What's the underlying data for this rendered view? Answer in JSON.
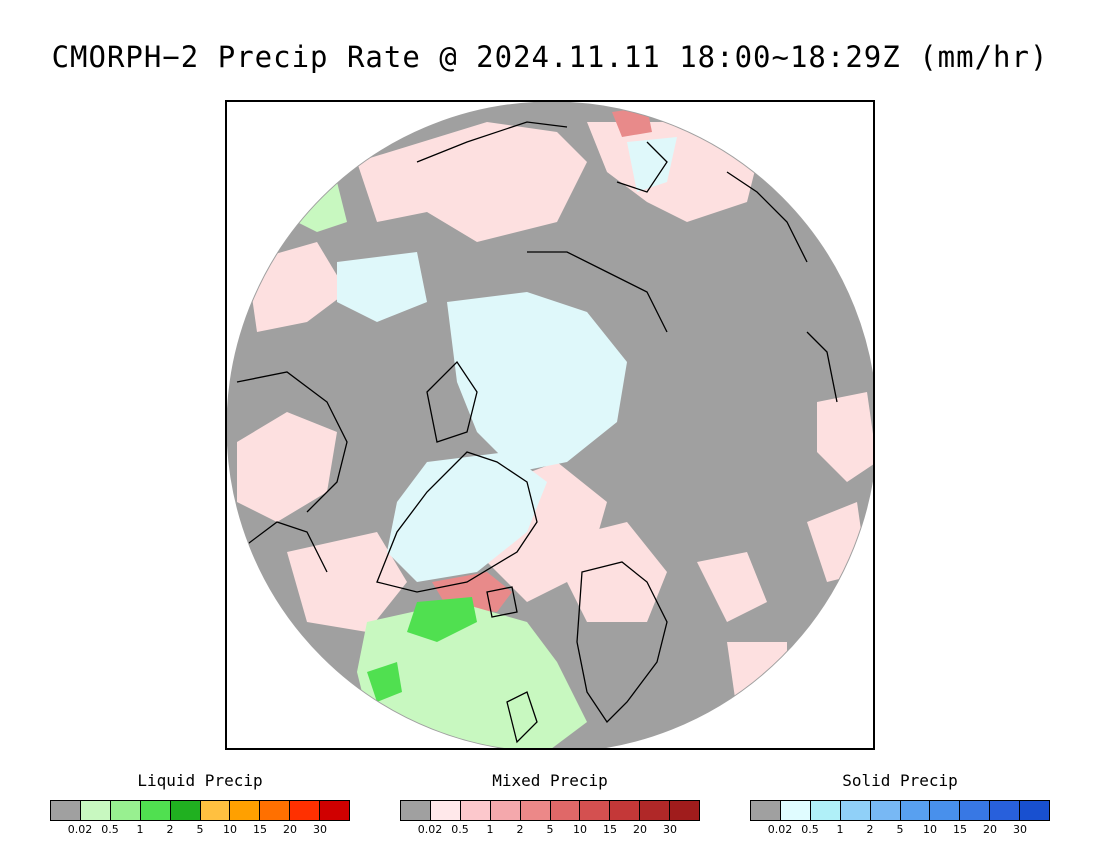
{
  "title": "CMORPH−2 Precip Rate @ 2024.11.11 18:00~18:29Z (mm/hr)",
  "colors": {
    "no_precip": "#a0a0a0",
    "ocean_mixed_light": "#fde0e0",
    "snow_light": "#dff8fa",
    "coastline": "#000000"
  },
  "legends": [
    {
      "id": "liquid",
      "title": "Liquid Precip",
      "colors": [
        "#a0a0a0",
        "#c8f8c0",
        "#98f090",
        "#50e050",
        "#20b020",
        "#ffc040",
        "#ffa000",
        "#ff7000",
        "#ff3000",
        "#d00000"
      ],
      "ticks": [
        "0.02",
        "0.5",
        "1",
        "2",
        "5",
        "10",
        "15",
        "20",
        "30"
      ]
    },
    {
      "id": "mixed",
      "title": "Mixed Precip",
      "colors": [
        "#a0a0a0",
        "#ffe8ea",
        "#fcc8cc",
        "#f4a8ac",
        "#ec8888",
        "#e06868",
        "#d45050",
        "#c43838",
        "#b02828",
        "#a01c1c"
      ],
      "ticks": [
        "0.02",
        "0.5",
        "1",
        "2",
        "5",
        "10",
        "15",
        "20",
        "30"
      ]
    },
    {
      "id": "solid",
      "title": "Solid Precip",
      "colors": [
        "#a0a0a0",
        "#e0fcff",
        "#b0f0f8",
        "#90d0f8",
        "#78b8f4",
        "#58a0f0",
        "#4890ec",
        "#3878e4",
        "#2860dc",
        "#1850d0"
      ],
      "ticks": [
        "0.02",
        "0.5",
        "1",
        "2",
        "5",
        "10",
        "15",
        "20",
        "30"
      ]
    }
  ]
}
